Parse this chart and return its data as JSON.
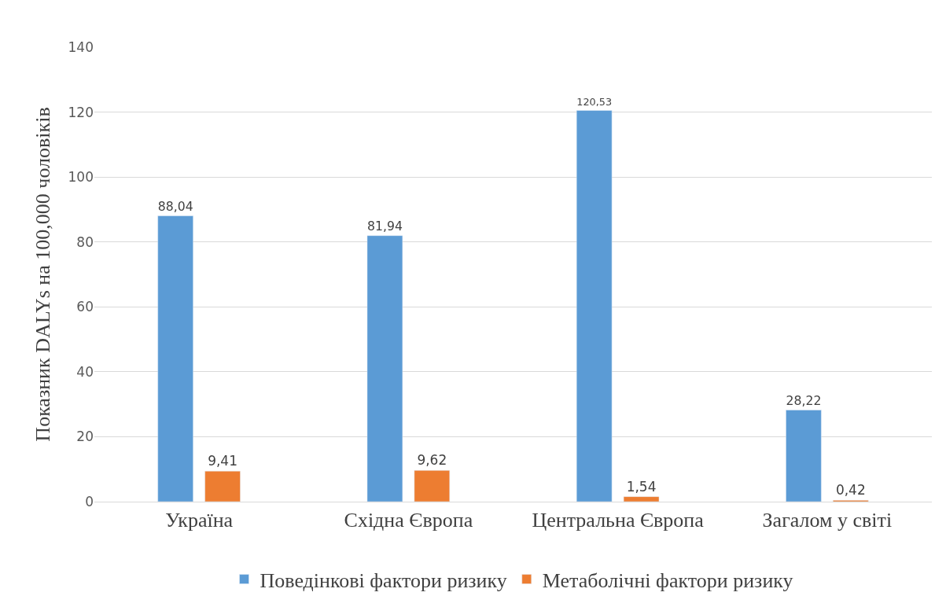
{
  "chart_data": {
    "type": "bar",
    "ylabel": "Показник DALYs на 100,000 чоловіків",
    "categories": [
      "Україна",
      "Східна Європа",
      "Центральна Європа",
      "Загалом у світі"
    ],
    "series": [
      {
        "name": "Поведінкові фактори ризику",
        "color": "#5b9bd5",
        "values": [
          88.04,
          81.94,
          120.53,
          28.22
        ],
        "value_labels": [
          "88,04",
          "81,94",
          "120,53",
          "28,22"
        ]
      },
      {
        "name": "Метаболічні фактори ризику",
        "color": "#ed7d31",
        "values": [
          9.41,
          9.62,
          1.54,
          0.42
        ],
        "value_labels": [
          "9,41",
          "9,62",
          "1,54",
          "0,42"
        ]
      }
    ],
    "ylim": [
      0,
      140
    ],
    "yticks": [
      0,
      20,
      40,
      60,
      80,
      100,
      120,
      140
    ],
    "grid": "y",
    "legend": "bottom"
  }
}
